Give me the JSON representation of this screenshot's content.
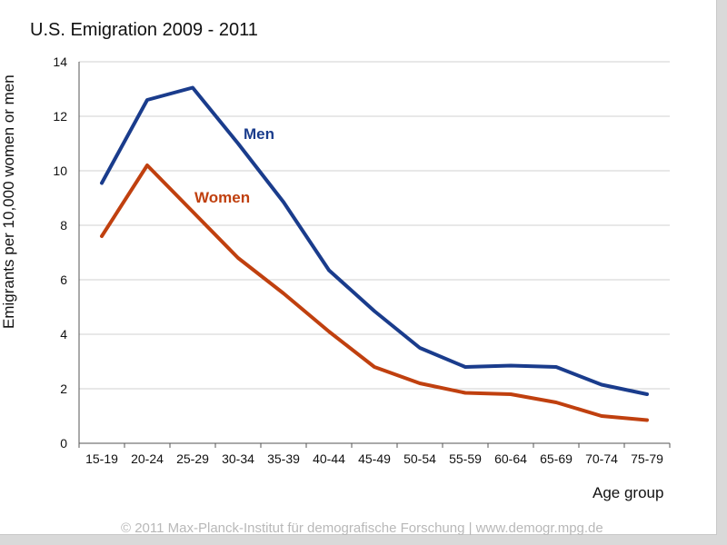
{
  "chart_data": {
    "type": "line",
    "title": "U.S. Emigration 2009 - 2011",
    "xlabel": "Age group",
    "ylabel": "Emigrants per 10,000 women or men",
    "ylim": [
      0,
      14
    ],
    "yticks": [
      0,
      2,
      4,
      6,
      8,
      10,
      12,
      14
    ],
    "grid": true,
    "categories": [
      "15-19",
      "20-24",
      "25-29",
      "30-34",
      "35-39",
      "40-44",
      "45-49",
      "50-54",
      "55-59",
      "60-64",
      "65-69",
      "70-74",
      "75-79"
    ],
    "series": [
      {
        "name": "Men",
        "color": "#1a3c8c",
        "values": [
          9.55,
          12.6,
          13.05,
          11.0,
          8.85,
          6.35,
          4.85,
          3.5,
          2.8,
          2.85,
          2.8,
          2.15,
          1.8
        ]
      },
      {
        "name": "Women",
        "color": "#c0400f",
        "values": [
          7.6,
          10.2,
          8.5,
          6.8,
          5.5,
          4.1,
          2.8,
          2.2,
          1.85,
          1.8,
          1.5,
          1.0,
          0.85
        ]
      }
    ]
  },
  "footer": {
    "copyright": "© 2011 Max-Planck-Institut für demografische Forschung | www.demogr.mpg.de"
  }
}
